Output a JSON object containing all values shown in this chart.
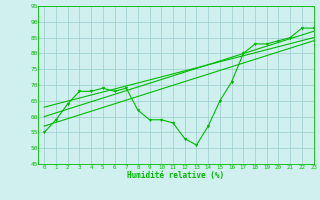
{
  "x": [
    0,
    1,
    2,
    3,
    4,
    5,
    6,
    7,
    8,
    9,
    10,
    11,
    12,
    13,
    14,
    15,
    16,
    17,
    18,
    19,
    20,
    21,
    22,
    23
  ],
  "main_y": [
    55,
    59,
    64,
    68,
    68,
    69,
    68,
    69,
    62,
    59,
    59,
    58,
    53,
    51,
    57,
    65,
    71,
    80,
    83,
    83,
    84,
    85,
    88,
    88
  ],
  "trend1_x": [
    0,
    23
  ],
  "trend1_y": [
    57,
    84
  ],
  "trend2_x": [
    0,
    23
  ],
  "trend2_y": [
    60,
    87
  ],
  "trend3_x": [
    0,
    23
  ],
  "trend3_y": [
    63,
    85
  ],
  "xlabel": "Humidité relative (%)",
  "ylim": [
    45,
    95
  ],
  "xlim": [
    -0.5,
    23
  ],
  "yticks": [
    45,
    50,
    55,
    60,
    65,
    70,
    75,
    80,
    85,
    90,
    95
  ],
  "xticks": [
    0,
    1,
    2,
    3,
    4,
    5,
    6,
    7,
    8,
    9,
    10,
    11,
    12,
    13,
    14,
    15,
    16,
    17,
    18,
    19,
    20,
    21,
    22,
    23
  ],
  "line_color": "#00bb00",
  "bg_color": "#d0f0f0",
  "grid_color": "#99cccc"
}
